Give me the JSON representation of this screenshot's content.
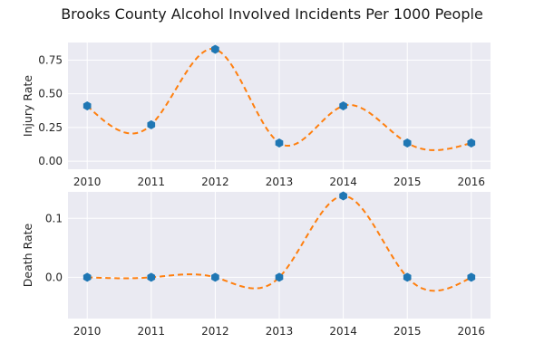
{
  "chart_data": {
    "title": "Brooks County Alcohol Involved Incidents Per 1000 People",
    "panels": [
      {
        "type": "line",
        "smooth": true,
        "ylabel": "Injury Rate",
        "x": [
          2010,
          2011,
          2012,
          2013,
          2014,
          2015,
          2016
        ],
        "y": [
          0.41,
          0.27,
          0.83,
          0.135,
          0.41,
          0.135,
          0.135
        ],
        "xticks": [
          "2010",
          "2011",
          "2012",
          "2013",
          "2014",
          "2015",
          "2016"
        ],
        "yticks": [
          "0.00",
          "0.25",
          "0.50",
          "0.75"
        ],
        "ytick_values": [
          0.0,
          0.25,
          0.5,
          0.75
        ],
        "xlim": [
          2009.7,
          2016.3
        ],
        "ylim": [
          -0.06,
          0.88
        ],
        "grid": true,
        "marker": "hexagon",
        "line_style": "dashed",
        "line_color": "#ff7f0e",
        "marker_color": "#1f77b4"
      },
      {
        "type": "line",
        "smooth": true,
        "ylabel": "Death Rate",
        "x": [
          2010,
          2011,
          2012,
          2013,
          2014,
          2015,
          2016
        ],
        "y": [
          0.0,
          0.0,
          0.0,
          0.0,
          0.138,
          0.0,
          0.0
        ],
        "xticks": [
          "2010",
          "2011",
          "2012",
          "2013",
          "2014",
          "2015",
          "2016"
        ],
        "yticks": [
          "0.0",
          "0.1"
        ],
        "ytick_values": [
          0.0,
          0.1
        ],
        "xlim": [
          2009.7,
          2016.3
        ],
        "ylim": [
          -0.07,
          0.145
        ],
        "grid": true,
        "marker": "hexagon",
        "line_style": "dashed",
        "line_color": "#ff7f0e",
        "marker_color": "#1f77b4"
      }
    ]
  }
}
